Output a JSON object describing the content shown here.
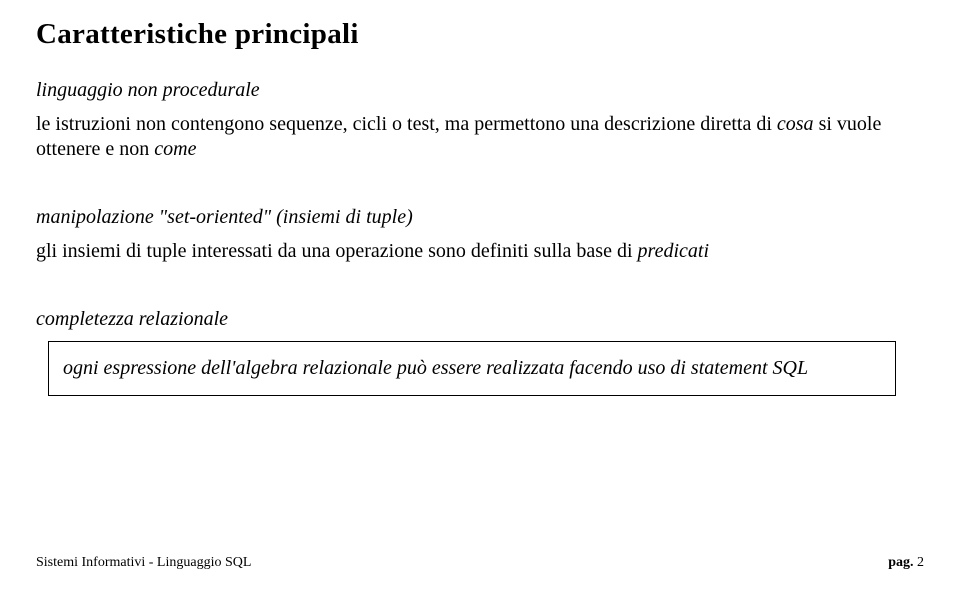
{
  "title": "Caratteristiche principali",
  "section1": {
    "heading": "linguaggio non procedurale",
    "text_before_italic": "le istruzioni non contengono sequenze, cicli o test, ma permettono una descrizione diretta di ",
    "italic1": "cosa",
    "text_mid": " si vuole ottenere e non ",
    "italic2": "come"
  },
  "section2": {
    "heading": "manipolazione \"set-oriented\" (insiemi di tuple)",
    "text_before_italic": "gli insiemi di tuple interessati da una operazione sono definiti sulla base di ",
    "italic1": "predicati"
  },
  "section3": {
    "heading": "completezza relazionale",
    "boxed_text": "ogni espressione dell'algebra relazionale può essere realizzata facendo uso di statement SQL"
  },
  "footer": {
    "left": "Sistemi Informativi - Linguaggio SQL",
    "right_label": "pag.",
    "right_num": "2"
  }
}
